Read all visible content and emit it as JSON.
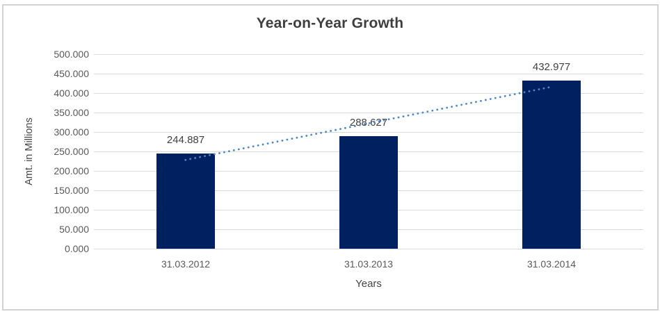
{
  "chart_data": {
    "type": "bar",
    "title": "Year-on-Year Growth",
    "categories": [
      "31.03.2012",
      "31.03.2013",
      "31.03.2014"
    ],
    "values": [
      244.887,
      288.627,
      432.977
    ],
    "value_labels": [
      "244.887",
      "288.627",
      "432.977"
    ],
    "xlabel": "Years",
    "ylabel": "Amt. in Millions",
    "ylim": [
      0,
      500
    ],
    "ytick_step": 50,
    "ytick_labels_top_to_bottom": [
      "500.000",
      "450.000",
      "400.000",
      "350.000",
      "300.000",
      "250.000",
      "200.000",
      "150.000",
      "100.000",
      "50.000",
      "0.000"
    ],
    "grid": true,
    "legend": false,
    "trendline": {
      "type": "linear",
      "style": "dotted"
    },
    "colors": {
      "bar": "#002060",
      "trendline": "#4c86c8",
      "gridline": "#d9d9d9",
      "title_text": "#3f3f3f",
      "tick_text": "#595959",
      "data_label_text": "#404040",
      "frame_border": "#d4d2d0",
      "background": "#ffffff"
    }
  }
}
